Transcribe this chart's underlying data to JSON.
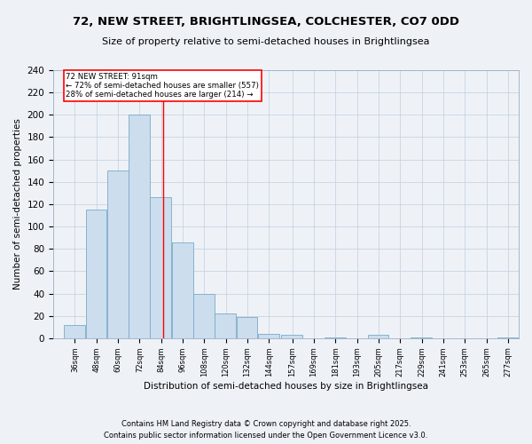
{
  "title1": "72, NEW STREET, BRIGHTLINGSEA, COLCHESTER, CO7 0DD",
  "title2": "Size of property relative to semi-detached houses in Brightlingsea",
  "xlabel": "Distribution of semi-detached houses by size in Brightlingsea",
  "ylabel": "Number of semi-detached properties",
  "bins": [
    36,
    48,
    60,
    72,
    84,
    96,
    108,
    120,
    132,
    144,
    157,
    169,
    181,
    193,
    205,
    217,
    229,
    241,
    253,
    265,
    277
  ],
  "heights": [
    12,
    115,
    150,
    200,
    126,
    86,
    40,
    22,
    19,
    4,
    3,
    0,
    1,
    0,
    3,
    0,
    1,
    0,
    0,
    0,
    1
  ],
  "bar_color": "#ccdded",
  "bar_edge_color": "#7aaac8",
  "red_line_x": 91,
  "annotation_title": "72 NEW STREET: 91sqm",
  "annotation_left": "← 72% of semi-detached houses are smaller (557)",
  "annotation_right": "28% of semi-detached houses are larger (214) →",
  "ylim": [
    0,
    240
  ],
  "yticks": [
    0,
    20,
    40,
    60,
    80,
    100,
    120,
    140,
    160,
    180,
    200,
    220,
    240
  ],
  "footnote1": "Contains HM Land Registry data © Crown copyright and database right 2025.",
  "footnote2": "Contains public sector information licensed under the Open Government Licence v3.0.",
  "bg_color": "#eef2f7",
  "plot_bg_color": "#eef2f7",
  "grid_color": "#c0cfe0"
}
